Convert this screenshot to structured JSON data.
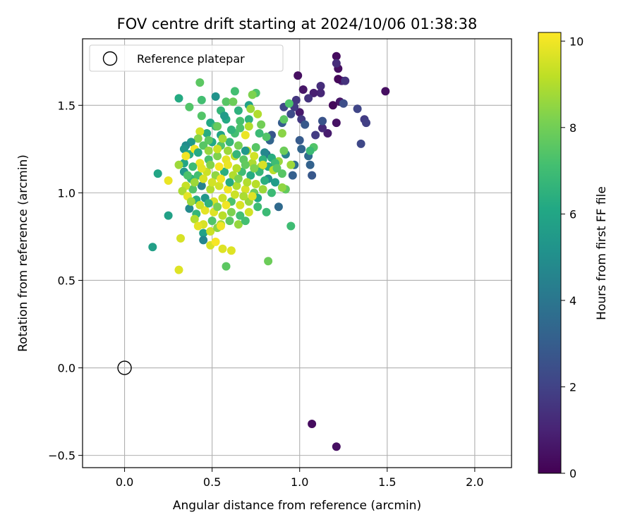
{
  "chart_data": {
    "type": "scatter",
    "title": "FOV centre drift starting at 2024/10/06 01:38:38",
    "xlabel": "Angular distance from reference (arcmin)",
    "ylabel": "Rotation from reference (arcmin)",
    "xlim": [
      -0.24,
      2.21
    ],
    "ylim": [
      -0.57,
      1.88
    ],
    "xticks": [
      0.0,
      0.5,
      1.0,
      1.5,
      2.0
    ],
    "xtick_labels": [
      "0.0",
      "0.5",
      "1.0",
      "1.5",
      "2.0"
    ],
    "yticks": [
      -0.5,
      0.0,
      0.5,
      1.0,
      1.5
    ],
    "ytick_labels": [
      "−0.5",
      "0.0",
      "0.5",
      "1.0",
      "1.5"
    ],
    "grid": true,
    "legend": {
      "placement": "top-left",
      "entries": [
        "Reference platepar"
      ]
    },
    "reference_point": {
      "x": 0.0,
      "y": 0.0,
      "label": "Reference platepar"
    },
    "colorbar": {
      "label": "Hours from first FF file",
      "colormap": "viridis",
      "range": [
        0,
        10.2
      ],
      "ticks": [
        0,
        2,
        4,
        6,
        8,
        10
      ],
      "tick_labels": [
        "0",
        "2",
        "4",
        "6",
        "8",
        "10"
      ]
    },
    "series": [
      {
        "points": [
          [
            1.21,
            1.78,
            0.3
          ],
          [
            1.22,
            1.71,
            0.4
          ],
          [
            1.21,
            1.74,
            1.3
          ],
          [
            1.24,
            1.64,
            1.0
          ],
          [
            1.22,
            1.65,
            0.2
          ],
          [
            1.23,
            1.52,
            0.6
          ],
          [
            1.19,
            1.5,
            0.2
          ],
          [
            1.26,
            1.64,
            1.5
          ],
          [
            1.25,
            1.51,
            2.4
          ],
          [
            1.21,
            1.4,
            0.5
          ],
          [
            1.16,
            1.34,
            0.8
          ],
          [
            1.13,
            1.37,
            1.2
          ],
          [
            1.12,
            1.61,
            1.3
          ],
          [
            1.12,
            1.57,
            1.1
          ],
          [
            1.08,
            1.57,
            0.9
          ],
          [
            1.02,
            1.59,
            0.6
          ],
          [
            0.99,
            1.67,
            0.4
          ],
          [
            0.98,
            1.53,
            1.6
          ],
          [
            1.0,
            1.46,
            0.7
          ],
          [
            1.01,
            1.42,
            1.7
          ],
          [
            1.03,
            1.39,
            2.8
          ],
          [
            1.09,
            1.33,
            1.8
          ],
          [
            1.13,
            1.41,
            2.6
          ],
          [
            1.05,
            1.54,
            1.5
          ],
          [
            1.33,
            1.48,
            2.1
          ],
          [
            1.37,
            1.42,
            1.8
          ],
          [
            1.38,
            1.4,
            1.9
          ],
          [
            1.35,
            1.28,
            2.2
          ],
          [
            1.49,
            1.58,
            0.4
          ],
          [
            1.07,
            -0.32,
            0.3
          ],
          [
            1.21,
            -0.45,
            0.4
          ],
          [
            0.97,
            1.49,
            1.7
          ],
          [
            0.95,
            1.45,
            2.3
          ],
          [
            0.91,
            1.49,
            2.2
          ],
          [
            1.0,
            1.3,
            2.9
          ],
          [
            1.01,
            1.25,
            3.3
          ],
          [
            1.05,
            1.21,
            3.6
          ],
          [
            1.06,
            1.16,
            3.2
          ],
          [
            1.07,
            1.1,
            2.8
          ],
          [
            0.96,
            1.1,
            3.1
          ],
          [
            0.97,
            1.16,
            3.7
          ],
          [
            0.92,
            1.22,
            4.4
          ],
          [
            0.9,
            1.4,
            3.0
          ],
          [
            0.84,
            1.33,
            2.7
          ],
          [
            0.83,
            1.3,
            3.3
          ],
          [
            0.81,
            1.22,
            3.6
          ],
          [
            0.88,
            0.92,
            3.5
          ],
          [
            1.08,
            1.26,
            7.4
          ],
          [
            1.06,
            1.24,
            6.9
          ],
          [
            0.94,
            1.51,
            7.3
          ],
          [
            0.95,
            1.16,
            8.7
          ],
          [
            0.91,
            1.24,
            7.9
          ],
          [
            0.9,
            1.34,
            8.4
          ],
          [
            0.91,
            1.42,
            7.6
          ],
          [
            0.95,
            0.81,
            7.0
          ],
          [
            0.92,
            1.02,
            7.7
          ],
          [
            0.88,
            1.18,
            8.6
          ],
          [
            0.82,
            0.61,
            7.9
          ],
          [
            0.81,
            0.89,
            6.9
          ],
          [
            0.31,
            1.54,
            6.2
          ],
          [
            0.37,
            1.49,
            7.4
          ],
          [
            0.43,
            1.63,
            7.6
          ],
          [
            0.44,
            1.53,
            7.1
          ],
          [
            0.44,
            1.44,
            7.4
          ],
          [
            0.52,
            1.55,
            5.2
          ],
          [
            0.63,
            1.58,
            7.1
          ],
          [
            0.75,
            1.57,
            7.3
          ],
          [
            0.73,
            1.56,
            8.2
          ],
          [
            0.71,
            1.5,
            5.8
          ],
          [
            0.72,
            1.48,
            8.7
          ],
          [
            0.76,
            1.45,
            9.0
          ],
          [
            0.65,
            1.47,
            6.5
          ],
          [
            0.58,
            1.52,
            7.5
          ],
          [
            0.62,
            1.52,
            7.9
          ],
          [
            0.55,
            1.47,
            6.7
          ],
          [
            0.49,
            1.4,
            6.1
          ],
          [
            0.52,
            1.38,
            6.8
          ],
          [
            0.58,
            1.42,
            6.2
          ],
          [
            0.66,
            1.41,
            7.2
          ],
          [
            0.71,
            1.42,
            6.6
          ],
          [
            0.78,
            1.39,
            8.0
          ],
          [
            0.81,
            1.32,
            7.4
          ],
          [
            0.77,
            1.34,
            6.9
          ],
          [
            0.69,
            1.33,
            9.9
          ],
          [
            0.63,
            1.34,
            7.1
          ],
          [
            0.55,
            1.33,
            5.9
          ],
          [
            0.47,
            1.34,
            6.3
          ],
          [
            0.43,
            1.35,
            9.5
          ],
          [
            0.42,
            1.31,
            8.3
          ],
          [
            0.38,
            1.29,
            5.5
          ],
          [
            0.35,
            1.27,
            4.9
          ],
          [
            0.34,
            1.25,
            5.3
          ],
          [
            0.37,
            1.22,
            6.3
          ],
          [
            0.4,
            1.25,
            10.0
          ],
          [
            0.45,
            1.27,
            7.5
          ],
          [
            0.5,
            1.29,
            6.1
          ],
          [
            0.55,
            1.27,
            7.4
          ],
          [
            0.6,
            1.29,
            6.8
          ],
          [
            0.65,
            1.27,
            8.1
          ],
          [
            0.7,
            1.24,
            9.3
          ],
          [
            0.75,
            1.26,
            7.5
          ],
          [
            0.8,
            1.23,
            4.7
          ],
          [
            0.84,
            1.2,
            6.3
          ],
          [
            0.86,
            1.17,
            7.0
          ],
          [
            0.82,
            1.15,
            6.2
          ],
          [
            0.78,
            1.15,
            8.6
          ],
          [
            0.73,
            1.17,
            8.9
          ],
          [
            0.68,
            1.19,
            7.6
          ],
          [
            0.63,
            1.21,
            9.2
          ],
          [
            0.58,
            1.19,
            9.8
          ],
          [
            0.53,
            1.21,
            8.2
          ],
          [
            0.48,
            1.19,
            7.2
          ],
          [
            0.43,
            1.17,
            9.9
          ],
          [
            0.39,
            1.15,
            6.9
          ],
          [
            0.34,
            1.17,
            6.0
          ],
          [
            0.31,
            1.16,
            8.7
          ],
          [
            0.34,
            1.12,
            5.4
          ],
          [
            0.38,
            1.08,
            6.6
          ],
          [
            0.42,
            1.1,
            7.1
          ],
          [
            0.47,
            1.12,
            9.4
          ],
          [
            0.52,
            1.1,
            8.5
          ],
          [
            0.57,
            1.12,
            6.4
          ],
          [
            0.62,
            1.1,
            9.0
          ],
          [
            0.67,
            1.12,
            7.0
          ],
          [
            0.72,
            1.1,
            6.2
          ],
          [
            0.77,
            1.12,
            6.7
          ],
          [
            0.82,
            1.08,
            5.1
          ],
          [
            0.86,
            1.06,
            5.6
          ],
          [
            0.9,
            1.03,
            8.5
          ],
          [
            0.84,
            1.0,
            6.9
          ],
          [
            0.79,
            1.02,
            8.7
          ],
          [
            0.74,
            1.0,
            7.9
          ],
          [
            0.69,
            1.02,
            9.6
          ],
          [
            0.64,
            1.04,
            9.0
          ],
          [
            0.59,
            1.02,
            10.0
          ],
          [
            0.54,
            1.04,
            9.5
          ],
          [
            0.49,
            1.02,
            9.0
          ],
          [
            0.44,
            1.04,
            4.5
          ],
          [
            0.39,
            1.02,
            7.4
          ],
          [
            0.35,
            1.04,
            9.3
          ],
          [
            0.33,
            1.01,
            8.9
          ],
          [
            0.36,
            0.98,
            9.8
          ],
          [
            0.41,
            0.96,
            6.4
          ],
          [
            0.46,
            0.97,
            5.3
          ],
          [
            0.51,
            0.95,
            9.6
          ],
          [
            0.56,
            0.97,
            9.4
          ],
          [
            0.61,
            0.95,
            7.3
          ],
          [
            0.66,
            0.93,
            9.6
          ],
          [
            0.71,
            0.95,
            8.6
          ],
          [
            0.76,
            0.97,
            6.1
          ],
          [
            0.76,
            0.92,
            7.0
          ],
          [
            0.71,
            0.89,
            9.5
          ],
          [
            0.66,
            0.87,
            7.1
          ],
          [
            0.61,
            0.89,
            8.2
          ],
          [
            0.56,
            0.87,
            9.1
          ],
          [
            0.51,
            0.89,
            9.7
          ],
          [
            0.46,
            0.9,
            9.8
          ],
          [
            0.41,
            0.88,
            6.7
          ],
          [
            0.37,
            0.91,
            4.8
          ],
          [
            0.4,
            0.85,
            9.0
          ],
          [
            0.45,
            0.82,
            9.6
          ],
          [
            0.5,
            0.84,
            7.4
          ],
          [
            0.55,
            0.82,
            8.8
          ],
          [
            0.6,
            0.84,
            7.6
          ],
          [
            0.65,
            0.82,
            8.6
          ],
          [
            0.69,
            0.84,
            7.1
          ],
          [
            0.42,
            0.81,
            9.8
          ],
          [
            0.45,
            0.77,
            5.8
          ],
          [
            0.49,
            0.78,
            9.4
          ],
          [
            0.53,
            0.8,
            8.4
          ],
          [
            0.55,
            0.81,
            10.0
          ],
          [
            0.45,
            0.73,
            4.6
          ],
          [
            0.49,
            0.7,
            9.6
          ],
          [
            0.52,
            0.72,
            10.1
          ],
          [
            0.56,
            0.68,
            9.7
          ],
          [
            0.61,
            0.67,
            9.7
          ],
          [
            0.58,
            0.58,
            7.6
          ],
          [
            0.32,
            0.74,
            9.6
          ],
          [
            0.31,
            0.56,
            9.7
          ],
          [
            0.25,
            1.07,
            9.9
          ],
          [
            0.25,
            0.87,
            5.8
          ],
          [
            0.19,
            1.11,
            6.0
          ],
          [
            0.16,
            0.69,
            5.7
          ],
          [
            0.35,
            1.21,
            10.0
          ],
          [
            0.42,
            1.23,
            6.2
          ],
          [
            0.48,
            1.24,
            8.6
          ],
          [
            0.53,
            1.25,
            9.4
          ],
          [
            0.59,
            1.24,
            8.7
          ],
          [
            0.64,
            1.22,
            6.7
          ],
          [
            0.69,
            1.24,
            5.4
          ],
          [
            0.74,
            1.21,
            9.5
          ],
          [
            0.79,
            1.19,
            6.6
          ],
          [
            0.85,
            1.13,
            9.1
          ],
          [
            0.9,
            1.11,
            7.5
          ],
          [
            0.87,
            1.14,
            7.6
          ],
          [
            0.8,
            1.07,
            6.4
          ],
          [
            0.75,
            1.05,
            9.1
          ],
          [
            0.7,
            1.06,
            9.0
          ],
          [
            0.65,
            1.08,
            8.2
          ],
          [
            0.6,
            1.06,
            6.3
          ],
          [
            0.55,
            1.08,
            10.0
          ],
          [
            0.5,
            1.06,
            9.5
          ],
          [
            0.45,
            1.08,
            9.6
          ],
          [
            0.4,
            1.06,
            8.7
          ],
          [
            0.36,
            1.1,
            7.3
          ],
          [
            0.44,
            1.14,
            9.8
          ],
          [
            0.49,
            1.16,
            8.3
          ],
          [
            0.54,
            1.15,
            10.1
          ],
          [
            0.59,
            1.16,
            9.9
          ],
          [
            0.64,
            1.14,
            9.1
          ],
          [
            0.69,
            1.16,
            7.7
          ],
          [
            0.74,
            1.14,
            8.2
          ],
          [
            0.79,
            1.16,
            9.6
          ],
          [
            0.56,
            1.31,
            8.8
          ],
          [
            0.61,
            1.36,
            6.6
          ],
          [
            0.66,
            1.37,
            7.3
          ],
          [
            0.71,
            1.38,
            9.0
          ],
          [
            0.57,
            1.44,
            5.6
          ],
          [
            0.53,
            1.38,
            7.8
          ],
          [
            0.48,
            1.3,
            7.6
          ],
          [
            0.58,
            0.93,
            10.0
          ],
          [
            0.63,
            0.99,
            9.4
          ],
          [
            0.68,
            0.98,
            8.9
          ],
          [
            0.73,
            0.98,
            9.7
          ],
          [
            0.53,
            0.92,
            8.1
          ],
          [
            0.48,
            0.94,
            6.6
          ],
          [
            0.43,
            0.93,
            9.4
          ],
          [
            0.38,
            0.95,
            8.7
          ]
        ]
      }
    ]
  }
}
